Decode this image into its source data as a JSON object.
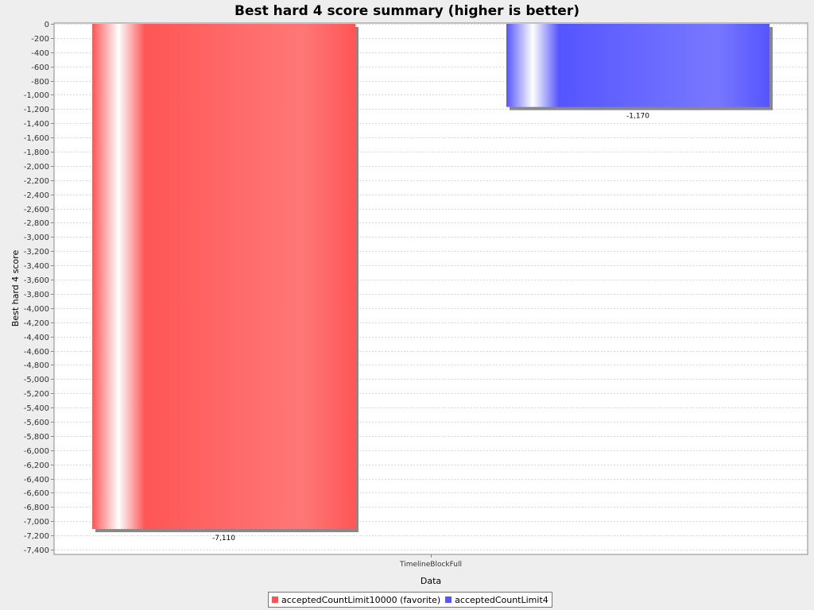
{
  "chart_data": {
    "type": "bar",
    "title": "Best hard 4 score summary (higher is better)",
    "xlabel": "Data",
    "ylabel": "Best hard 4 score",
    "categories": [
      "TimelineBlockFull"
    ],
    "series": [
      {
        "name": "acceptedCountLimit10000 (favorite)",
        "values": [
          -7110
        ],
        "value_labels": [
          "-7,110"
        ],
        "color": "#ff5555"
      },
      {
        "name": "acceptedCountLimit4",
        "values": [
          -1170
        ],
        "value_labels": [
          "-1,170"
        ],
        "color": "#5555ff"
      }
    ],
    "ylim": [
      -7400,
      0
    ],
    "y_tick_step": 200,
    "grid": true,
    "legend_position": "bottom"
  },
  "colors": {
    "background": "#eeeeee",
    "plot_background": "#ffffff",
    "gridline": "#d8d8d8"
  }
}
